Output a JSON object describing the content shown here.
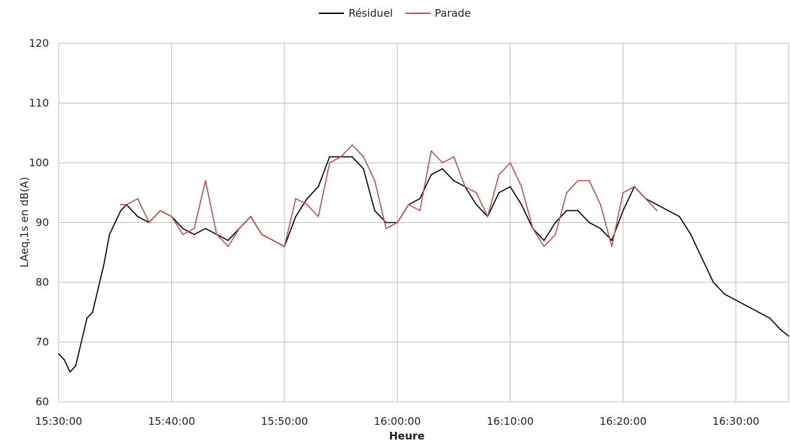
{
  "chart_data": {
    "type": "line",
    "title": "",
    "xlabel": "Heure",
    "ylabel": "LAeq,1s en dB(A)",
    "ylim": [
      60,
      120
    ],
    "yticks": [
      60,
      70,
      80,
      90,
      100,
      110,
      120
    ],
    "xlim": [
      "15:30:00",
      "16:34:40"
    ],
    "xticks": [
      "15:30:00",
      "15:40:00",
      "15:50:00",
      "16:00:00",
      "16:10:00",
      "16:20:00",
      "16:30:00"
    ],
    "grid": true,
    "legend_position": "top-center",
    "series": [
      {
        "name": "Résiduel",
        "color": "#000000",
        "x": [
          "15:30:00",
          "15:30:30",
          "15:31:00",
          "15:31:30",
          "15:32:00",
          "15:32:30",
          "15:33:00",
          "15:33:30",
          "15:34:00",
          "15:34:30",
          "15:35:00",
          "15:35:30",
          "15:36:00",
          "15:37:00",
          "15:38:00",
          "15:39:00",
          "15:40:00",
          "15:41:00",
          "15:42:00",
          "15:43:00",
          "15:44:00",
          "15:45:00",
          "15:46:00",
          "15:47:00",
          "15:48:00",
          "15:49:00",
          "15:50:00",
          "15:51:00",
          "15:52:00",
          "15:53:00",
          "15:54:00",
          "15:55:00",
          "15:56:00",
          "15:57:00",
          "15:58:00",
          "15:59:00",
          "16:00:00",
          "16:01:00",
          "16:02:00",
          "16:03:00",
          "16:04:00",
          "16:05:00",
          "16:06:00",
          "16:07:00",
          "16:08:00",
          "16:09:00",
          "16:10:00",
          "16:11:00",
          "16:12:00",
          "16:13:00",
          "16:14:00",
          "16:15:00",
          "16:16:00",
          "16:17:00",
          "16:18:00",
          "16:19:00",
          "16:20:00",
          "16:21:00",
          "16:22:00",
          "16:23:00",
          "16:24:00",
          "16:25:00",
          "16:26:00",
          "16:27:00",
          "16:28:00",
          "16:29:00",
          "16:30:00",
          "16:31:00",
          "16:32:00",
          "16:33:00",
          "16:34:00",
          "16:34:40"
        ],
        "values": [
          68,
          67,
          65,
          66,
          70,
          74,
          75,
          79,
          83,
          88,
          90,
          92,
          93,
          91,
          90,
          92,
          91,
          89,
          88,
          89,
          88,
          87,
          89,
          91,
          88,
          87,
          86,
          91,
          94,
          96,
          101,
          101,
          101,
          99,
          92,
          90,
          90,
          93,
          94,
          98,
          99,
          97,
          96,
          93,
          91,
          95,
          96,
          93,
          89,
          87,
          90,
          92,
          92,
          90,
          89,
          87,
          92,
          96,
          94,
          93,
          92,
          91,
          88,
          84,
          80,
          78,
          77,
          76,
          75,
          74,
          72,
          71
        ]
      },
      {
        "name": "Parade",
        "color": "#c0504d",
        "x": [
          "15:35:30",
          "15:36:00",
          "15:37:00",
          "15:38:00",
          "15:39:00",
          "15:40:00",
          "15:41:00",
          "15:42:00",
          "15:43:00",
          "15:44:00",
          "15:45:00",
          "15:46:00",
          "15:47:00",
          "15:48:00",
          "15:49:00",
          "15:50:00",
          "15:51:00",
          "15:52:00",
          "15:53:00",
          "15:54:00",
          "15:55:00",
          "15:56:00",
          "15:57:00",
          "15:58:00",
          "15:59:00",
          "16:00:00",
          "16:01:00",
          "16:02:00",
          "16:03:00",
          "16:04:00",
          "16:05:00",
          "16:06:00",
          "16:07:00",
          "16:08:00",
          "16:09:00",
          "16:10:00",
          "16:11:00",
          "16:12:00",
          "16:13:00",
          "16:14:00",
          "16:15:00",
          "16:16:00",
          "16:17:00",
          "16:18:00",
          "16:19:00",
          "16:20:00",
          "16:21:00",
          "16:22:00",
          "16:23:00"
        ],
        "values": [
          93,
          93,
          94,
          90,
          92,
          91,
          88,
          89,
          97,
          88,
          86,
          89,
          91,
          88,
          87,
          86,
          94,
          93,
          91,
          100,
          101,
          103,
          101,
          97,
          89,
          90,
          93,
          92,
          102,
          100,
          101,
          96,
          95,
          91,
          98,
          100,
          96,
          89,
          86,
          88,
          95,
          97,
          97,
          93,
          86,
          95,
          96,
          94,
          92
        ]
      }
    ]
  }
}
